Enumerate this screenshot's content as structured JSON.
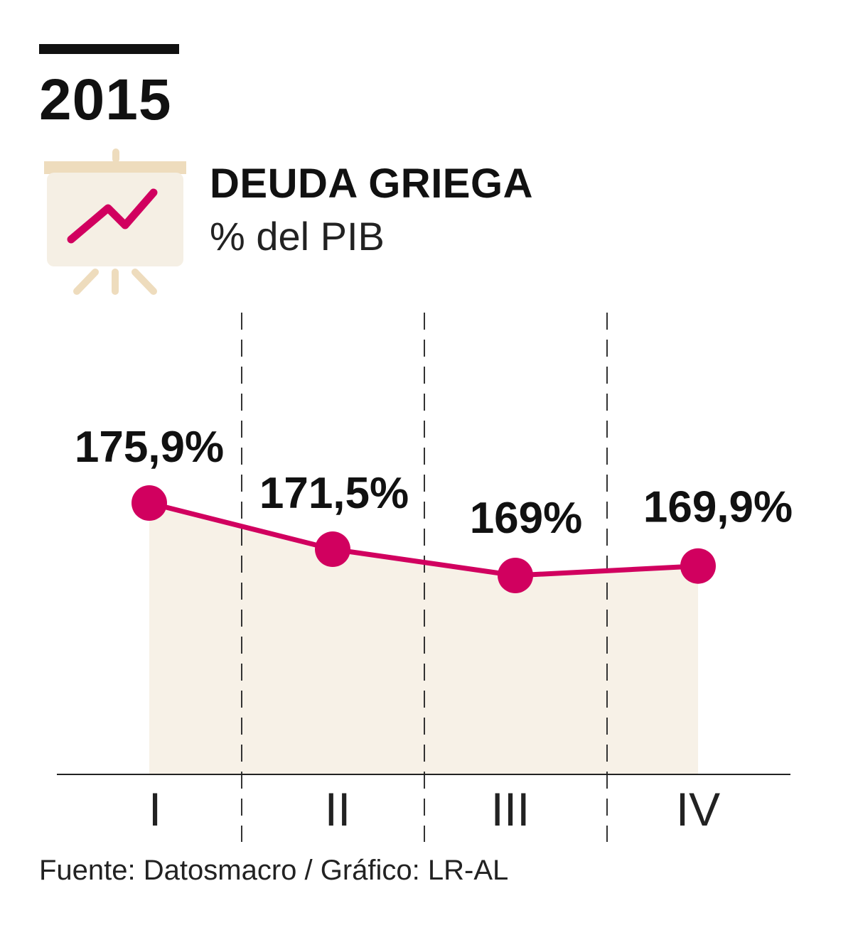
{
  "header": {
    "year": "2015",
    "title": "DEUDA GRIEGA",
    "subtitle": "% del PIB",
    "icon": "presentation-chart-icon"
  },
  "footer": {
    "source": "Fuente: Datosmacro / Gráfico: LR-AL"
  },
  "colors": {
    "line": "#d1005f",
    "area": "#f7f1e7",
    "icon_board": "#f5efe4",
    "icon_frame": "#eedcbd",
    "text": "#111111"
  },
  "chart_data": {
    "type": "area",
    "title": "DEUDA GRIEGA",
    "subtitle": "% del PIB",
    "categories": [
      "I",
      "II",
      "III",
      "IV"
    ],
    "values": [
      175.9,
      171.5,
      169,
      169.9
    ],
    "data_labels": [
      "175,9%",
      "171,5%",
      "169%",
      "169,9%"
    ],
    "unit": "%",
    "xlabel": "",
    "ylabel": "",
    "grid": "dashed vertical separators between quarters",
    "legend": "none"
  }
}
